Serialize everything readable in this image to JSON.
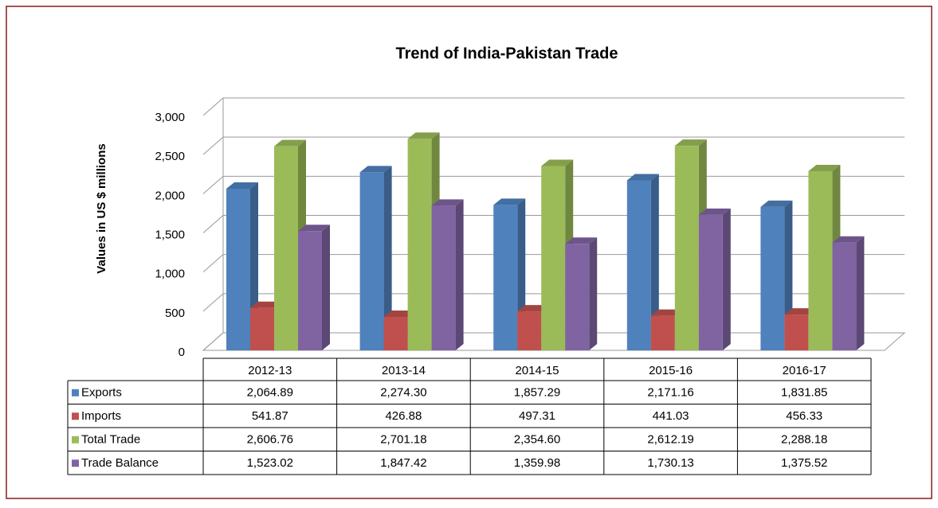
{
  "chart_data": {
    "type": "bar3d",
    "title": "Trend of India-Pakistan Trade",
    "y_label": "Values in US $ millions",
    "categories": [
      "2012-13",
      "2013-14",
      "2014-15",
      "2015-16",
      "2016-17"
    ],
    "series": [
      {
        "name": "Exports",
        "color": "#4f81bd",
        "values": [
          2064.89,
          2274.3,
          1857.29,
          2171.16,
          1831.85
        ],
        "value_labels": [
          "2,064.89",
          "2,274.30",
          "1,857.29",
          "2,171.16",
          "1,831.85"
        ]
      },
      {
        "name": "Imports",
        "color": "#c0504d",
        "values": [
          541.87,
          426.88,
          497.31,
          441.03,
          456.33
        ]
      },
      {
        "name": "Total Trade",
        "color": "#9bbb59",
        "values": [
          2606.76,
          2701.18,
          2354.6,
          2612.19,
          2288.18
        ],
        "value_labels": [
          "2,606.76",
          "2,701.18",
          "2,354.60",
          "2,612.19",
          "2,288.18"
        ]
      },
      {
        "name": "Trade Balance",
        "color": "#8064a2",
        "values": [
          1523.02,
          1847.42,
          1359.98,
          1730.13,
          1375.52
        ],
        "value_labels": [
          "1,523.02",
          "1,847.42",
          "1,359.98",
          "1,730.13",
          "1,375.52"
        ]
      }
    ],
    "ylim": [
      0,
      3000
    ],
    "yticks": [
      0,
      500,
      {
        "value": 1000,
        "label": "1,000"
      },
      {
        "value": 1500,
        "label": "1,500"
      },
      {
        "value": 2000,
        "label": "2,000"
      },
      {
        "value": 2500,
        "label": "2,500"
      },
      {
        "value": 3000,
        "label": "3,000"
      }
    ],
    "grid": true
  }
}
